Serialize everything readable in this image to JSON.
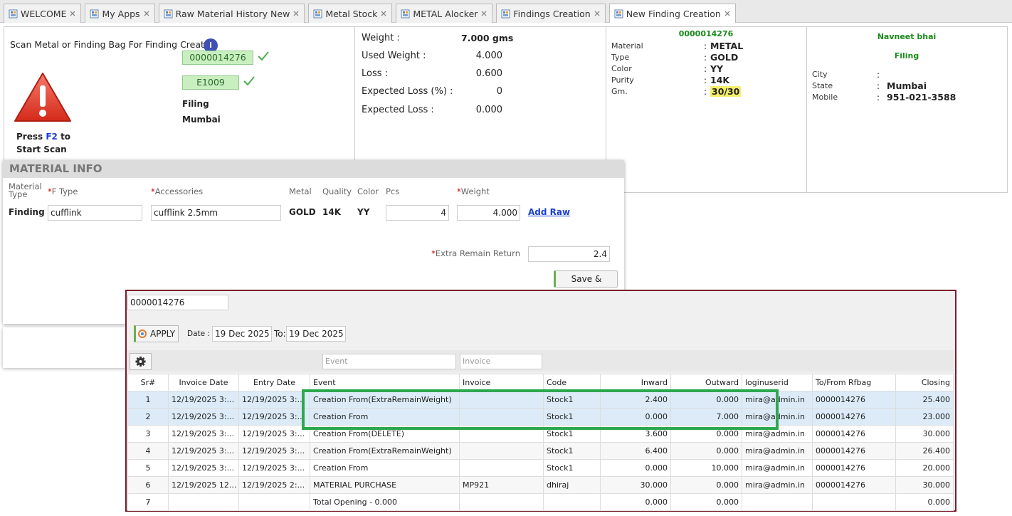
{
  "tabs": [
    "WELCOME",
    "My Apps",
    "Raw Material History New",
    "Metal Stock",
    "METAL Alocker",
    "Findings Creation",
    "New Finding Creation"
  ],
  "active_tab": 6,
  "scan": {
    "prompt": "Scan Metal or Finding Bag For Finding Creation",
    "info_icon": "i",
    "codes": [
      "0000014276",
      "E1009"
    ],
    "process": "Filing",
    "location": "Mumbai",
    "press": "Press",
    "key": "F2",
    "to": "to",
    "start": "Start Scan"
  },
  "weights": [
    {
      "label": "Weight :",
      "value": "7.000 gms"
    },
    {
      "label": "Used Weight :",
      "value": "4.000"
    },
    {
      "label": "Loss :",
      "value": "0.600"
    },
    {
      "label": "Expected Loss (%) :",
      "value": "0"
    },
    {
      "label": "Expected Loss :",
      "value": "0.000"
    }
  ],
  "material_card": {
    "code": "0000014276",
    "separator": ":",
    "rows": [
      {
        "label": "Material",
        "value": "METAL"
      },
      {
        "label": "Type",
        "value": "GOLD"
      },
      {
        "label": "Color",
        "value": "YY"
      },
      {
        "label": "Purity",
        "value": "14K"
      },
      {
        "label": "Gm.",
        "value": "30/30"
      }
    ]
  },
  "party": {
    "name": "Navneet bhai",
    "process": "Filing",
    "separator": ":",
    "rows": [
      {
        "label": "City"
      },
      {
        "label": "State",
        "value": "Mumbai"
      },
      {
        "label": "Mobile",
        "value": "951-021-3588"
      }
    ]
  },
  "material_info": {
    "title": "MATERIAL INFO",
    "required_mark": "*",
    "headers": [
      {
        "text": "Material Type"
      },
      {
        "text": "F Type",
        "required": true
      },
      {
        "text": "Accessories",
        "required": true
      },
      {
        "text": "Metal"
      },
      {
        "text": "Quality"
      },
      {
        "text": "Color"
      },
      {
        "text": "Pcs"
      },
      {
        "text": "Weight",
        "required": true
      }
    ],
    "row": {
      "type": "Finding",
      "f_type": "cufflink",
      "accessories": "cufflink 2.5mm",
      "metal": "GOLD",
      "quality": "14K",
      "color": "YY",
      "pcs": "4",
      "weight": "4.000",
      "link": "Add Raw"
    },
    "extra_label": "Extra Remain Return",
    "extra_value": "2.4",
    "button": "Save & Return"
  },
  "history": {
    "bag": "0000014276",
    "apply": "APPLY",
    "date_label": "Date :",
    "from": "19 Dec 2025",
    "to_label": "To:",
    "to": "19 Dec 2025",
    "filters": [
      "Event",
      "Invoice"
    ],
    "columns": [
      "Sr#",
      "Invoice Date",
      "Entry Date",
      "Event",
      "Invoice",
      "Code",
      "Inward",
      "Outward",
      "loginuserid",
      "To/From Rfbag",
      "Closing"
    ],
    "highlighted_rows": [
      0,
      1
    ],
    "rows": [
      [
        "1",
        "12/19/2025 3:...",
        "12/19/2025 3:...",
        "Creation From(ExtraRemainWeight)",
        null,
        "Stock1",
        "2.400",
        "0.000",
        "mira@admin.in",
        "0000014276",
        "25.400"
      ],
      [
        "2",
        "12/19/2025 3:...",
        "12/19/2025 3:...",
        "Creation From",
        null,
        "Stock1",
        "0.000",
        "7.000",
        "mira@admin.in",
        "0000014276",
        "23.000"
      ],
      [
        "3",
        "12/19/2025 3:...",
        "12/19/2025 3:...",
        "Creation From(DELETE)",
        null,
        "Stock1",
        "3.600",
        "0.000",
        "mira@admin.in",
        "0000014276",
        "30.000"
      ],
      [
        "4",
        "12/19/2025 3:...",
        "12/19/2025 3:...",
        "Creation From(ExtraRemainWeight)",
        null,
        "Stock1",
        "6.400",
        "0.000",
        "mira@admin.in",
        "0000014276",
        "26.400"
      ],
      [
        "5",
        "12/19/2025 3:...",
        "12/19/2025 3:...",
        "Creation From",
        null,
        "Stock1",
        "0.000",
        "10.000",
        "mira@admin.in",
        "0000014276",
        "20.000"
      ],
      [
        "6",
        "12/19/2025 12...",
        "12/19/2025 2:...",
        "MATERIAL PURCHASE",
        "MP921",
        "dhiraj",
        "30.000",
        "0.000",
        "mira@admin.in",
        "0000014276",
        "30.000"
      ],
      [
        "7",
        null,
        null,
        "Total Opening - 0.000",
        null,
        null,
        "0.000",
        "0.000",
        null,
        null,
        "0.000"
      ]
    ]
  }
}
